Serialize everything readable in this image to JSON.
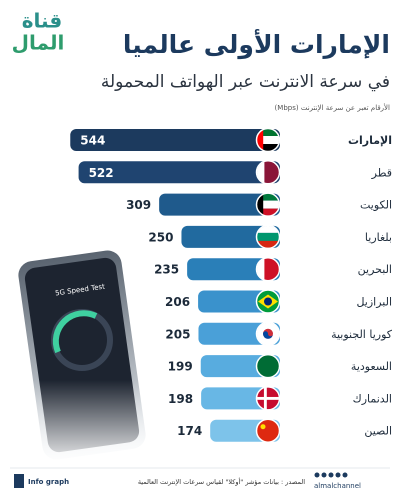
{
  "logo": {
    "line1": "قناة",
    "line2": "المال"
  },
  "chart_data": {
    "type": "bar",
    "orientation": "horizontal",
    "title": "الإمارات الأولى عالميا",
    "subtitle": "في سرعة الانترنت عبر الهواتف المحمولة",
    "note": "الأرقام تعبر عن سرعة الإنترنت (Mbps)",
    "categories": [
      "الإمارات",
      "قطر",
      "الكويت",
      "بلغاريا",
      "البحرين",
      "البرازيل",
      "كوريا الجنوبية",
      "السعودية",
      "الدنمارك",
      "الصين"
    ],
    "values": [
      544,
      522,
      309,
      250,
      235,
      206,
      205,
      199,
      198,
      174
    ],
    "colors": [
      "#1c3a5e",
      "#1f4470",
      "#1f5a8c",
      "#216a9f",
      "#2a7fb8",
      "#3a92cc",
      "#4aa0d8",
      "#58acdf",
      "#68b7e5",
      "#7dc3ea"
    ],
    "xlim": [
      0,
      550
    ]
  },
  "phone": {
    "label": "5G Speed Test"
  },
  "footer": {
    "brand": "Info graph",
    "source": "المصدر : بيانات مؤشر \"أوكلا\" لقياس سرعات الإنترنت العالمية",
    "handle": "almalchannel"
  }
}
